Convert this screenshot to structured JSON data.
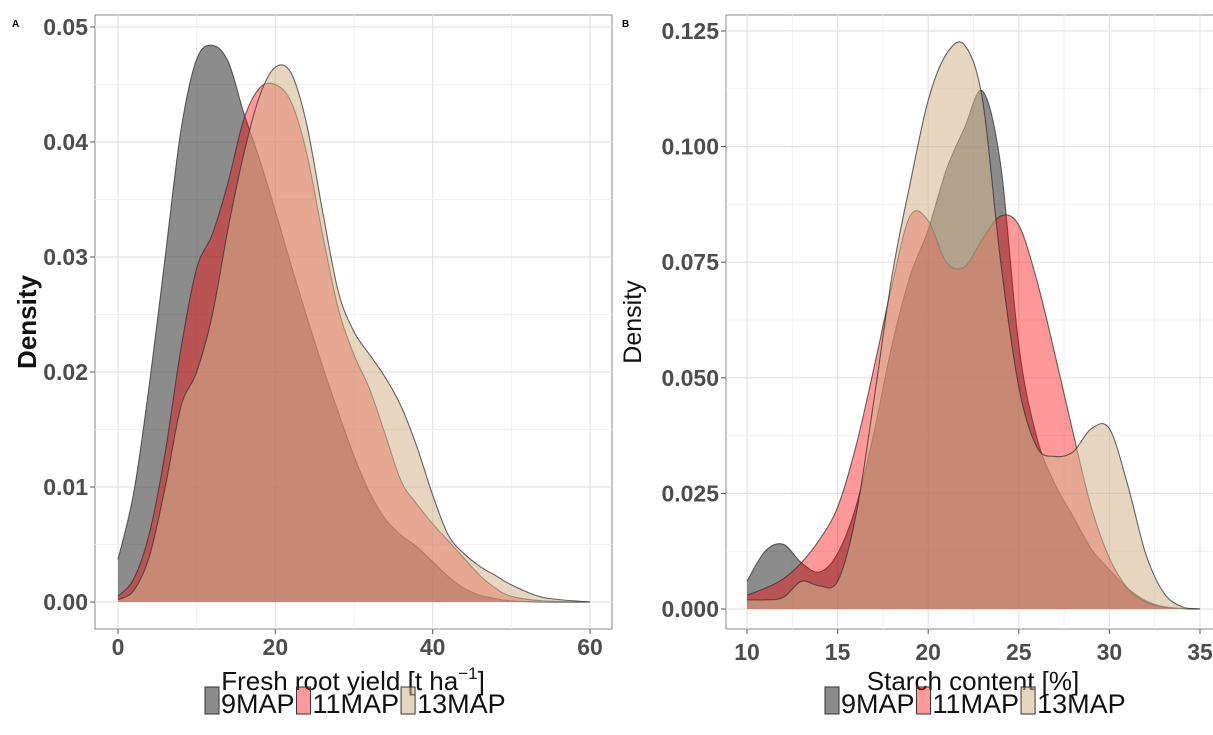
{
  "chart_data": [
    {
      "panel": "A",
      "type": "area",
      "xlabel": "Fresh root yield [t ha",
      "xlabel_sup": "−1",
      "xlabel_end": "]",
      "ylabel": "Density",
      "xlim": [
        0,
        60
      ],
      "ylim": [
        0,
        0.05
      ],
      "xticks": [
        0,
        20,
        40,
        60
      ],
      "yticks": [
        0.0,
        0.01,
        0.02,
        0.03,
        0.04,
        0.05
      ],
      "ytick_labels": [
        "0.00",
        "0.01",
        "0.02",
        "0.03",
        "0.04",
        "0.05"
      ],
      "grid": true,
      "legend_position": "bottom",
      "series": [
        {
          "name": "9MAP",
          "color": "#1a1a1a",
          "opacity": 0.5,
          "x": [
            0,
            2,
            4,
            6,
            8,
            10,
            12,
            14,
            16,
            18,
            20,
            22,
            24,
            26,
            28,
            30,
            32,
            34,
            36,
            38,
            40,
            42,
            44,
            46,
            48,
            50,
            54,
            60
          ],
          "y": [
            0.0037,
            0.0095,
            0.019,
            0.03,
            0.041,
            0.0472,
            0.0484,
            0.047,
            0.0425,
            0.0385,
            0.034,
            0.0293,
            0.0248,
            0.0205,
            0.0165,
            0.0127,
            0.0095,
            0.0072,
            0.0058,
            0.0048,
            0.0035,
            0.0022,
            0.0012,
            0.0006,
            0.0003,
            0.0001,
            0.0,
            0.0
          ]
        },
        {
          "name": "11MAP",
          "color": "#ff0000",
          "opacity": 0.4,
          "x": [
            0,
            2,
            4,
            6,
            8,
            10,
            12,
            14,
            16,
            18,
            20,
            22,
            24,
            26,
            28,
            30,
            32,
            34,
            36,
            38,
            40,
            42,
            44,
            46,
            48,
            50,
            54,
            60
          ],
          "y": [
            0.0005,
            0.002,
            0.006,
            0.013,
            0.022,
            0.029,
            0.032,
            0.0365,
            0.042,
            0.0447,
            0.045,
            0.0435,
            0.039,
            0.032,
            0.0255,
            0.0215,
            0.0185,
            0.0145,
            0.0105,
            0.0085,
            0.0068,
            0.0053,
            0.0038,
            0.0023,
            0.0012,
            0.0005,
            0.0001,
            0.0
          ]
        },
        {
          "name": "13MAP",
          "color": "#d2b48c",
          "opacity": 0.55,
          "x": [
            0,
            2,
            4,
            6,
            8,
            10,
            12,
            14,
            16,
            18,
            20,
            22,
            24,
            26,
            28,
            30,
            32,
            34,
            36,
            38,
            40,
            42,
            44,
            46,
            48,
            50,
            54,
            60
          ],
          "y": [
            0.0002,
            0.001,
            0.004,
            0.01,
            0.017,
            0.02,
            0.025,
            0.0325,
            0.039,
            0.044,
            0.0465,
            0.046,
            0.0415,
            0.034,
            0.027,
            0.0235,
            0.0215,
            0.0195,
            0.017,
            0.0135,
            0.0093,
            0.0058,
            0.0042,
            0.0031,
            0.0023,
            0.0015,
            0.0004,
            0.0
          ]
        }
      ]
    },
    {
      "panel": "B",
      "type": "area",
      "xlabel": "Starch content [%]",
      "ylabel": "Density",
      "xlim": [
        10,
        35
      ],
      "ylim": [
        0,
        0.125
      ],
      "xticks": [
        10,
        15,
        20,
        25,
        30,
        35
      ],
      "yticks": [
        0.0,
        0.025,
        0.05,
        0.075,
        0.1,
        0.125
      ],
      "ytick_labels": [
        "0.000",
        "0.025",
        "0.050",
        "0.075",
        "0.100",
        "0.125"
      ],
      "grid": true,
      "legend_position": "bottom",
      "series": [
        {
          "name": "9MAP",
          "color": "#1a1a1a",
          "opacity": 0.5,
          "x": [
            10,
            11,
            12,
            13,
            14,
            15,
            16,
            17,
            18,
            19,
            20,
            21,
            22,
            23,
            24,
            25,
            26,
            27,
            28,
            29,
            30,
            31,
            32,
            33,
            34,
            35
          ],
          "y": [
            0.006,
            0.0125,
            0.014,
            0.01,
            0.008,
            0.012,
            0.022,
            0.038,
            0.057,
            0.072,
            0.082,
            0.095,
            0.104,
            0.112,
            0.096,
            0.057,
            0.037,
            0.027,
            0.02,
            0.013,
            0.0085,
            0.0045,
            0.0018,
            0.0005,
            0.0001,
            0.0
          ]
        },
        {
          "name": "11MAP",
          "color": "#ff0000",
          "opacity": 0.4,
          "x": [
            10,
            11,
            12,
            13,
            14,
            15,
            16,
            17,
            18,
            19,
            20,
            21,
            22,
            23,
            24,
            25,
            26,
            27,
            28,
            29,
            30,
            31,
            32,
            33,
            34,
            35
          ],
          "y": [
            0.003,
            0.0045,
            0.0065,
            0.01,
            0.015,
            0.022,
            0.035,
            0.052,
            0.07,
            0.085,
            0.084,
            0.075,
            0.074,
            0.08,
            0.085,
            0.083,
            0.071,
            0.055,
            0.038,
            0.022,
            0.011,
            0.0045,
            0.0015,
            0.0004,
            0.0001,
            0.0
          ]
        },
        {
          "name": "13MAP",
          "color": "#d2b48c",
          "opacity": 0.55,
          "x": [
            10,
            11,
            12,
            13,
            14,
            15,
            16,
            17,
            18,
            19,
            20,
            21,
            22,
            23,
            24,
            25,
            26,
            27,
            28,
            29,
            30,
            31,
            32,
            33,
            34,
            35
          ],
          "y": [
            0.002,
            0.002,
            0.0025,
            0.006,
            0.005,
            0.006,
            0.02,
            0.045,
            0.072,
            0.092,
            0.11,
            0.12,
            0.122,
            0.11,
            0.075,
            0.048,
            0.035,
            0.033,
            0.034,
            0.039,
            0.039,
            0.027,
            0.012,
            0.0035,
            0.0005,
            0.0
          ]
        }
      ]
    }
  ]
}
